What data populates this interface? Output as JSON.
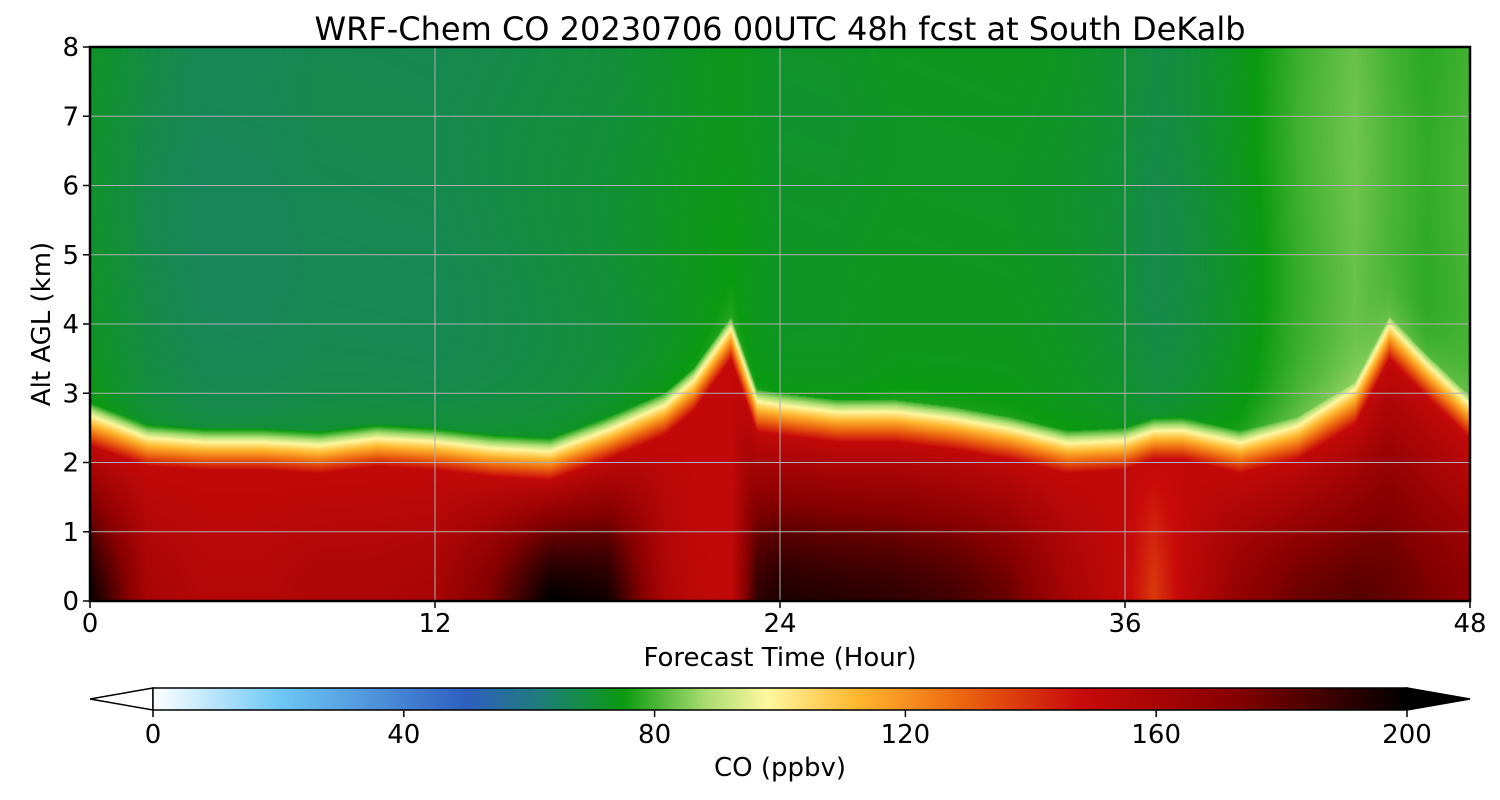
{
  "chart_data": {
    "type": "heatmap",
    "title": "WRF-Chem CO  20230706 00UTC 48h fcst at South DeKalb",
    "xlabel": "Forecast Time (Hour)",
    "ylabel": "Alt AGL (km)",
    "xlim": [
      0,
      48
    ],
    "ylim": [
      0,
      8
    ],
    "x_ticks": [
      0,
      12,
      24,
      36,
      48
    ],
    "y_ticks": [
      0,
      1,
      2,
      3,
      4,
      5,
      6,
      7,
      8
    ],
    "grid": true,
    "colorbar": {
      "label": "CO  (ppbv)",
      "range": [
        0,
        200
      ],
      "ticks": [
        0,
        40,
        80,
        120,
        160,
        200
      ],
      "extend": "both",
      "orientation": "horizontal",
      "stops": [
        {
          "v": 0,
          "color": "#ffffff"
        },
        {
          "v": 20,
          "color": "#6ec8f5"
        },
        {
          "v": 50,
          "color": "#2f5fc0"
        },
        {
          "v": 62,
          "color": "#1e7d78"
        },
        {
          "v": 75,
          "color": "#0a9a10"
        },
        {
          "v": 88,
          "color": "#a8dc70"
        },
        {
          "v": 98,
          "color": "#fff7a0"
        },
        {
          "v": 112,
          "color": "#ffb830"
        },
        {
          "v": 128,
          "color": "#ee6a10"
        },
        {
          "v": 148,
          "color": "#c80a0a"
        },
        {
          "v": 172,
          "color": "#880000"
        },
        {
          "v": 200,
          "color": "#000000"
        }
      ]
    },
    "profiles": {
      "hours": [
        0,
        2,
        4,
        6,
        8,
        10,
        12,
        14,
        16,
        18,
        20,
        21,
        22.3,
        23.2,
        24,
        26,
        28,
        30,
        32,
        34,
        36,
        37,
        38,
        40,
        42,
        44,
        45.2,
        46.5,
        48
      ],
      "pbl_top_km": [
        2.6,
        2.3,
        2.25,
        2.25,
        2.2,
        2.3,
        2.25,
        2.15,
        2.1,
        2.4,
        2.75,
        3.1,
        3.85,
        2.8,
        2.75,
        2.65,
        2.65,
        2.55,
        2.4,
        2.2,
        2.25,
        2.4,
        2.4,
        2.2,
        2.4,
        2.9,
        3.85,
        3.3,
        2.7
      ],
      "upper_co_ppbv": [
        72,
        68,
        66,
        66,
        67,
        67,
        67,
        68,
        69,
        70,
        72,
        73,
        74,
        73,
        72,
        72,
        73,
        73,
        73,
        72,
        70,
        68,
        69,
        73,
        79,
        83,
        80,
        78,
        80
      ],
      "surface_co_ppbv": [
        198,
        160,
        155,
        155,
        158,
        158,
        160,
        175,
        200,
        196,
        158,
        152,
        150,
        190,
        194,
        192,
        190,
        186,
        178,
        160,
        150,
        138,
        150,
        168,
        178,
        182,
        180,
        175,
        170
      ]
    }
  }
}
